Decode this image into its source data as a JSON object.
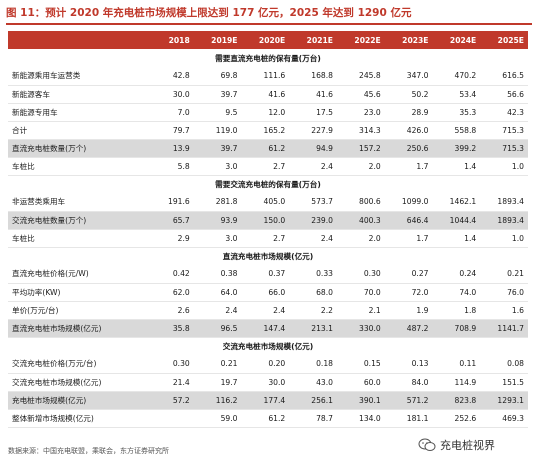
{
  "title": "图 11：预计 2020 年充电桩市场规模上限达到 177 亿元，2025 年达到 1290 亿元",
  "header": [
    "",
    "2018",
    "2019E",
    "2020E",
    "2021E",
    "2022E",
    "2023E",
    "2024E",
    "2025E"
  ],
  "rows": [
    {
      "type": "section",
      "label": "需要直流充电桩的保有量(万台)"
    },
    {
      "type": "row",
      "label": "新能源乘用车运营类",
      "values": [
        "42.8",
        "69.8",
        "111.6",
        "168.8",
        "245.8",
        "347.0",
        "470.2",
        "616.5"
      ]
    },
    {
      "type": "row",
      "label": "新能源客车",
      "values": [
        "30.0",
        "39.7",
        "41.6",
        "41.6",
        "45.6",
        "50.2",
        "53.4",
        "56.6"
      ]
    },
    {
      "type": "row",
      "label": "新能源专用车",
      "values": [
        "7.0",
        "9.5",
        "12.0",
        "17.5",
        "23.0",
        "28.9",
        "35.3",
        "42.3"
      ]
    },
    {
      "type": "row",
      "label": "合计",
      "values": [
        "79.7",
        "119.0",
        "165.2",
        "227.9",
        "314.3",
        "426.0",
        "558.8",
        "715.3"
      ]
    },
    {
      "type": "shaded",
      "label": "直流充电桩数量(万个)",
      "values": [
        "13.9",
        "39.7",
        "61.2",
        "94.9",
        "157.2",
        "250.6",
        "399.2",
        "715.3"
      ]
    },
    {
      "type": "row",
      "label": "车桩比",
      "values": [
        "5.8",
        "3.0",
        "2.7",
        "2.4",
        "2.0",
        "1.7",
        "1.4",
        "1.0"
      ]
    },
    {
      "type": "section",
      "label": "需要交流充电桩的保有量(万台)"
    },
    {
      "type": "row",
      "label": "非运营类乘用车",
      "values": [
        "191.6",
        "281.8",
        "405.0",
        "573.7",
        "800.6",
        "1099.0",
        "1462.1",
        "1893.4"
      ]
    },
    {
      "type": "shaded",
      "label": "交流充电桩数量(万个)",
      "values": [
        "65.7",
        "93.9",
        "150.0",
        "239.0",
        "400.3",
        "646.4",
        "1044.4",
        "1893.4"
      ]
    },
    {
      "type": "row",
      "label": "车桩比",
      "values": [
        "2.9",
        "3.0",
        "2.7",
        "2.4",
        "2.0",
        "1.7",
        "1.4",
        "1.0"
      ]
    },
    {
      "type": "section",
      "label": "直流充电桩市场规模(亿元)"
    },
    {
      "type": "row",
      "label": "直流充电桩价格(元/W)",
      "values": [
        "0.42",
        "0.38",
        "0.37",
        "0.33",
        "0.30",
        "0.27",
        "0.24",
        "0.21"
      ]
    },
    {
      "type": "row",
      "label": "平均功率(KW)",
      "values": [
        "62.0",
        "64.0",
        "66.0",
        "68.0",
        "70.0",
        "72.0",
        "74.0",
        "76.0"
      ]
    },
    {
      "type": "row",
      "label": "单价(万元/台)",
      "values": [
        "2.6",
        "2.4",
        "2.4",
        "2.2",
        "2.1",
        "1.9",
        "1.8",
        "1.6"
      ]
    },
    {
      "type": "shaded",
      "label": "直流充电桩市场规模(亿元)",
      "values": [
        "35.8",
        "96.5",
        "147.4",
        "213.1",
        "330.0",
        "487.2",
        "708.9",
        "1141.7"
      ]
    },
    {
      "type": "section",
      "label": "交流充电桩市场规模(亿元)"
    },
    {
      "type": "row",
      "label": "交流充电桩价格(万元/台)",
      "values": [
        "0.30",
        "0.21",
        "0.20",
        "0.18",
        "0.15",
        "0.13",
        "0.11",
        "0.08"
      ]
    },
    {
      "type": "row",
      "label": "交流充电桩市场规模(亿元)",
      "values": [
        "21.4",
        "19.7",
        "30.0",
        "43.0",
        "60.0",
        "84.0",
        "114.9",
        "151.5"
      ]
    },
    {
      "type": "shaded",
      "label": "充电桩市场规模(亿元)",
      "values": [
        "57.2",
        "116.2",
        "177.4",
        "256.1",
        "390.1",
        "571.2",
        "823.8",
        "1293.1"
      ]
    },
    {
      "type": "row",
      "label": "整体新增市场规模(亿元)",
      "values": [
        "",
        "59.0",
        "61.2",
        "78.7",
        "134.0",
        "181.1",
        "252.6",
        "469.3"
      ]
    }
  ],
  "source": "数据来源：中国充电联盟，乘联会，东方证券研究所",
  "watermark": {
    "icon": "wechat-icon",
    "text": "充电桩视界"
  },
  "colors": {
    "accent": "#c0392b",
    "shaded_row": "#d9d9d9"
  }
}
